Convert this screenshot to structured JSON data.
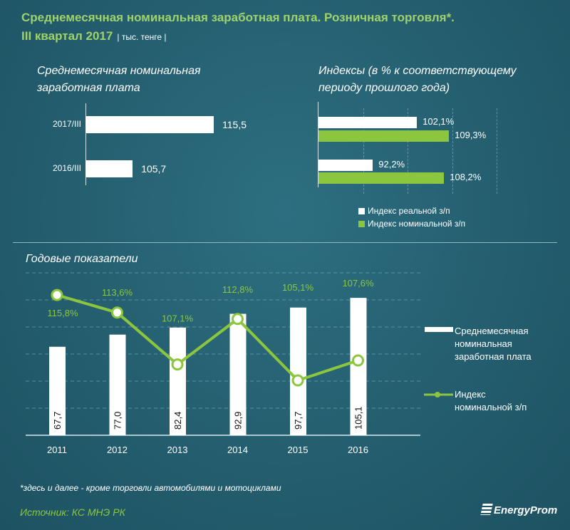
{
  "header": {
    "title_line1": "Среднемесячная номинальная заработная плата. Розничная торговля*.",
    "title_line2": "III квартал 2017",
    "units": "| тыс. тенге |"
  },
  "colors": {
    "green": "#8cc63f",
    "white": "#ffffff"
  },
  "chart_data": [
    {
      "type": "bar",
      "orientation": "horizontal",
      "title": "Среднемесячная номинальная заработная плата",
      "categories": [
        "2017/III",
        "2016/III"
      ],
      "values": [
        115.5,
        105.7
      ],
      "value_labels": [
        "115,5",
        "105,7"
      ],
      "xlim": [
        100,
        116
      ]
    },
    {
      "type": "bar",
      "orientation": "horizontal",
      "title": "Индексы (в % к соответствующему периоду прошлого года)",
      "categories": [
        "2017/III",
        "2016/III"
      ],
      "xlim": [
        80,
        120
      ],
      "legend_position": "bottom",
      "series": [
        {
          "name": "Индекс реальной з/п",
          "values": [
            102.1,
            92.2
          ],
          "labels": [
            "102,1%",
            "92,2%"
          ]
        },
        {
          "name": "Индекс номинальной з/п",
          "values": [
            109.3,
            108.2
          ],
          "labels": [
            "109,3%",
            "108,2%"
          ]
        }
      ]
    },
    {
      "type": "bar+line",
      "title": "Годовые показатели",
      "categories": [
        "2011",
        "2012",
        "2013",
        "2014",
        "2015",
        "2016"
      ],
      "legend_position": "right",
      "series": [
        {
          "name": "Среднемесячная номинальная заработная плата",
          "values": [
            67.7,
            77.0,
            82.4,
            92.9,
            97.7,
            105.1
          ],
          "labels": [
            "67,7",
            "77,0",
            "82,4",
            "92,9",
            "97,7",
            "105,1"
          ]
        },
        {
          "name": "Индекс номинальной з/п",
          "values": [
            115.8,
            113.6,
            107.1,
            112.8,
            105.1,
            107.6
          ],
          "labels": [
            "115,8%",
            "113,6%",
            "107,1%",
            "112,8%",
            "105,1%",
            "107,6%"
          ]
        }
      ]
    }
  ],
  "footer": {
    "note": "*здесь и далее - кроме торговли автомобилями и мотоциклами",
    "source": "Источник: КС МНЭ РК",
    "logo": "EnergyProm"
  }
}
